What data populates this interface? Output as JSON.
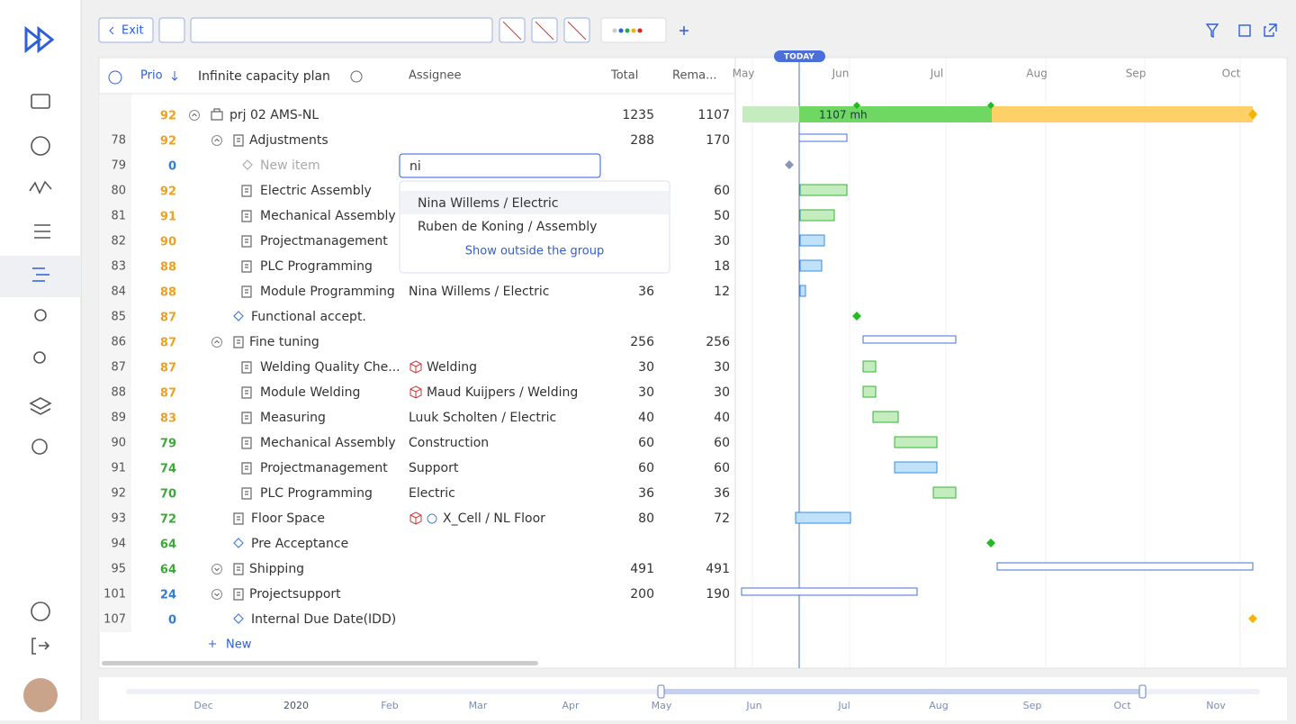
{
  "toolbar": {
    "exit": "Exit"
  },
  "table": {
    "headers": {
      "prio": "Prio",
      "title": "Infinite capacity plan",
      "assignee": "Assignee",
      "total": "Total",
      "remaining": "Rema..."
    },
    "rows": [
      {
        "prio": "92",
        "name": "prj 02 AMS-NL",
        "total": "1235",
        "remaining": "1107"
      },
      {
        "id": "78",
        "prio": "92",
        "name": "Adjustments",
        "total": "288",
        "remaining": "170"
      },
      {
        "id": "79",
        "prio": "0",
        "name": "New item"
      },
      {
        "id": "80",
        "prio": "92",
        "name": "Electric Assembly",
        "remaining": "60"
      },
      {
        "id": "81",
        "prio": "91",
        "name": "Mechanical Assembly",
        "remaining": "50"
      },
      {
        "id": "82",
        "prio": "90",
        "name": "Projectmanagement",
        "remaining": "30"
      },
      {
        "id": "83",
        "prio": "88",
        "name": "PLC Programming",
        "remaining": "18"
      },
      {
        "id": "84",
        "prio": "88",
        "name": "Module Programming",
        "assignee": "Nina Willems / Electric",
        "total": "36",
        "remaining": "12"
      },
      {
        "id": "85",
        "prio": "87",
        "name": "Functional accept."
      },
      {
        "id": "86",
        "prio": "87",
        "name": "Fine tuning",
        "total": "256",
        "remaining": "256"
      },
      {
        "id": "87",
        "prio": "87",
        "name": "Welding Quality Che...",
        "assignee": "Welding",
        "total": "30",
        "remaining": "30"
      },
      {
        "id": "88",
        "prio": "87",
        "name": "Module Welding",
        "assignee": "Maud Kuijpers / Welding",
        "total": "30",
        "remaining": "30"
      },
      {
        "id": "89",
        "prio": "83",
        "name": "Measuring",
        "assignee": "Luuk Scholten / Electric",
        "total": "40",
        "remaining": "40"
      },
      {
        "id": "90",
        "prio": "79",
        "name": "Mechanical Assembly",
        "assignee": "Construction",
        "total": "60",
        "remaining": "60"
      },
      {
        "id": "91",
        "prio": "74",
        "name": "Projectmanagement",
        "assignee": "Support",
        "total": "60",
        "remaining": "60"
      },
      {
        "id": "92",
        "prio": "70",
        "name": "PLC Programming",
        "assignee": "Electric",
        "total": "36",
        "remaining": "36"
      },
      {
        "id": "93",
        "prio": "72",
        "name": "Floor Space",
        "assignee": "X_Cell / NL Floor",
        "total": "80",
        "remaining": "72"
      },
      {
        "id": "94",
        "prio": "64",
        "name": "Pre Acceptance"
      },
      {
        "id": "95",
        "prio": "64",
        "name": "Shipping",
        "total": "491",
        "remaining": "491"
      },
      {
        "id": "101",
        "prio": "24",
        "name": "Projectsupport",
        "total": "200",
        "remaining": "190"
      },
      {
        "id": "107",
        "prio": "0",
        "name": "Internal Due Date(IDD)"
      }
    ],
    "new": "New"
  },
  "dropdown": {
    "input": "ni",
    "options": [
      "Nina Willems / Electric",
      "Ruben de Koning / Assembly"
    ],
    "more": "Show outside the group"
  },
  "timeline": {
    "today": "TODAY",
    "months": [
      "May",
      "Jun",
      "Jul",
      "Aug",
      "Sep",
      "Oct"
    ],
    "bar_label": "1107 mh"
  },
  "navigator": {
    "months": [
      "Dec",
      "2020",
      "Feb",
      "Mar",
      "Apr",
      "May",
      "Jun",
      "Jul",
      "Aug",
      "Sep",
      "Oct",
      "Nov"
    ]
  }
}
